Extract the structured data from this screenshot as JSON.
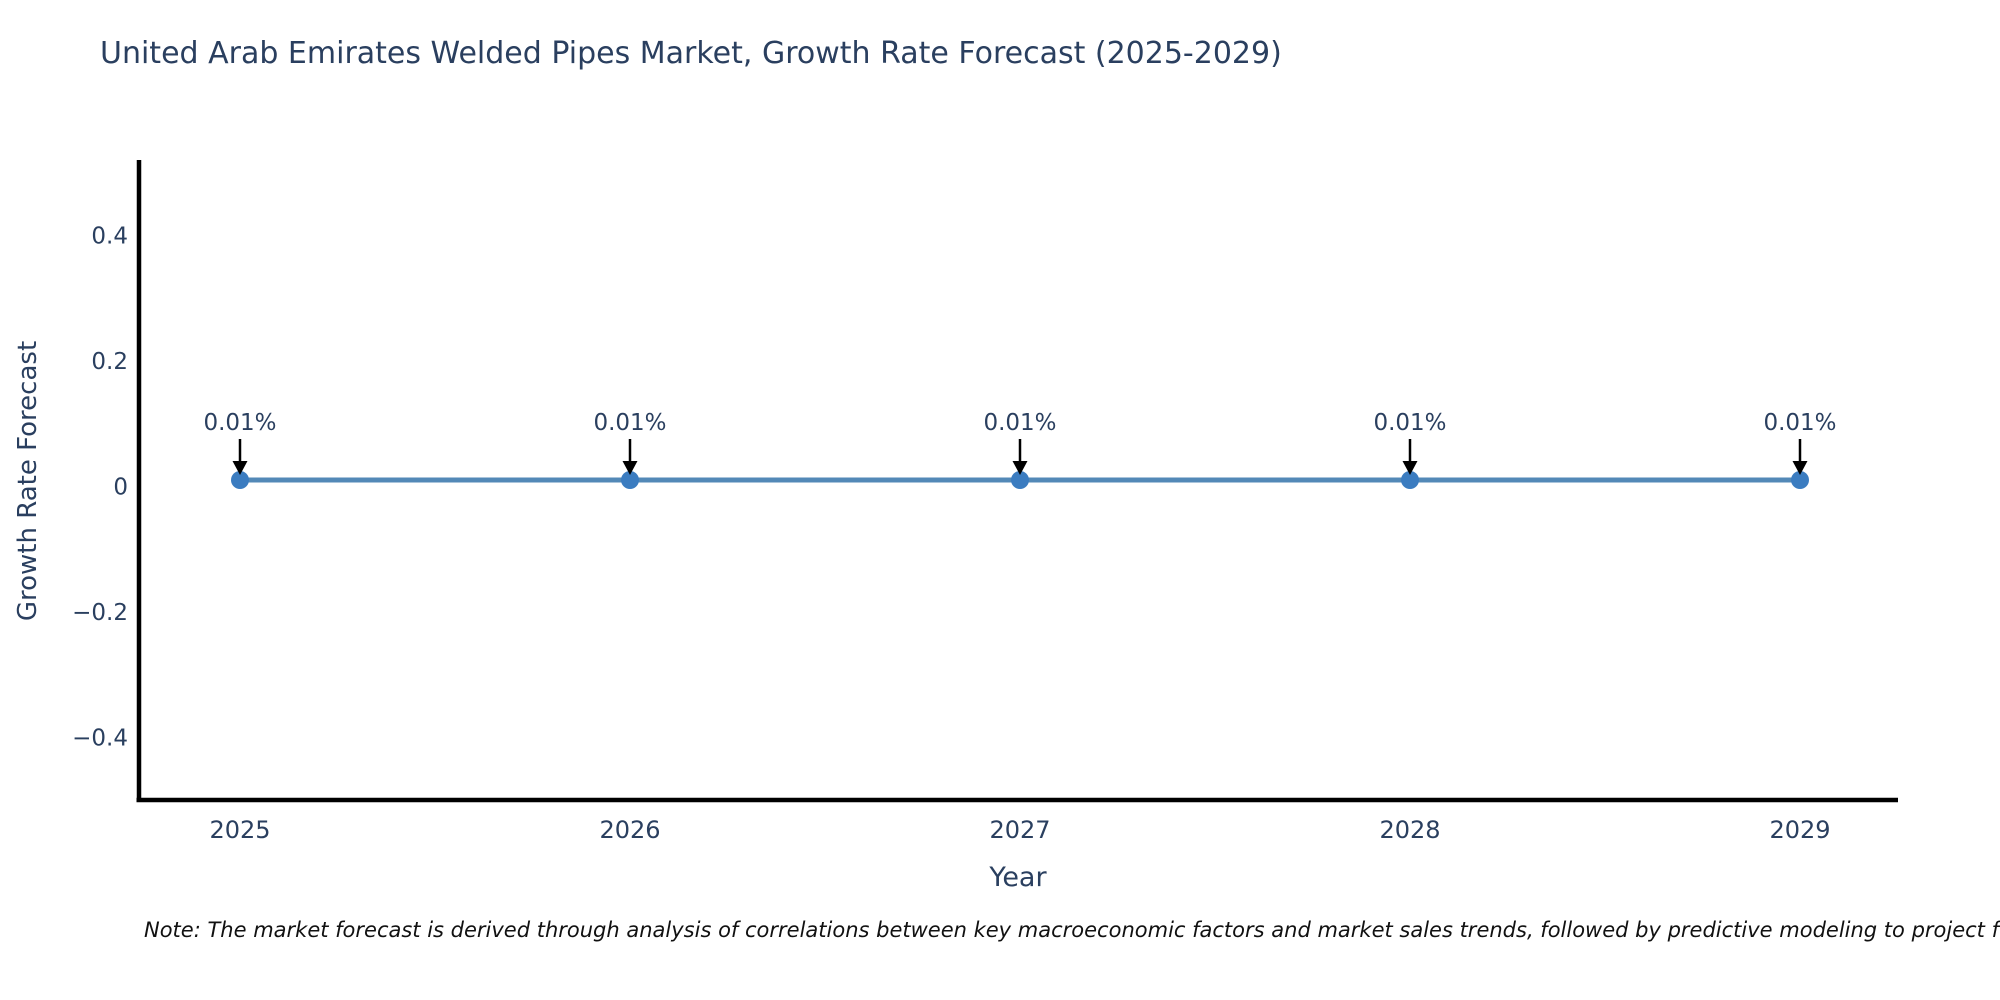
{
  "note": "Note: The market forecast is derived through analysis of correlations between key macroeconomic factors and market sales trends, followed by predictive modeling to project future sa",
  "chart_data": {
    "type": "line",
    "title": "United Arab Emirates Welded Pipes Market, Growth Rate Forecast (2025-2029)",
    "xlabel": "Year",
    "ylabel": "Growth Rate Forecast",
    "x": [
      "2025",
      "2026",
      "2027",
      "2028",
      "2029"
    ],
    "series": [
      {
        "name": "Growth Rate Forecast",
        "values": [
          0.01,
          0.01,
          0.01,
          0.01,
          0.01
        ],
        "point_labels": [
          "0.01%",
          "0.01%",
          "0.01%",
          "0.01%",
          "0.01%"
        ]
      }
    ],
    "unit": "%",
    "ylim": [
      -0.5,
      0.52
    ],
    "yticks": [
      0.4,
      0.2,
      0,
      -0.2,
      -0.4
    ],
    "ytick_labels": [
      "0.4",
      "0.2",
      "0",
      "−0.2",
      "−0.4"
    ],
    "grid": false,
    "legend": false,
    "annotation_arrows": true,
    "colors": {
      "line": "#5389b7",
      "marker": "#3b7cc0",
      "axis": "#000000",
      "tick_text": "#2a3f5f",
      "annotation_text": "#2a3f5f",
      "arrow": "#000000",
      "background": "#ffffff"
    }
  }
}
